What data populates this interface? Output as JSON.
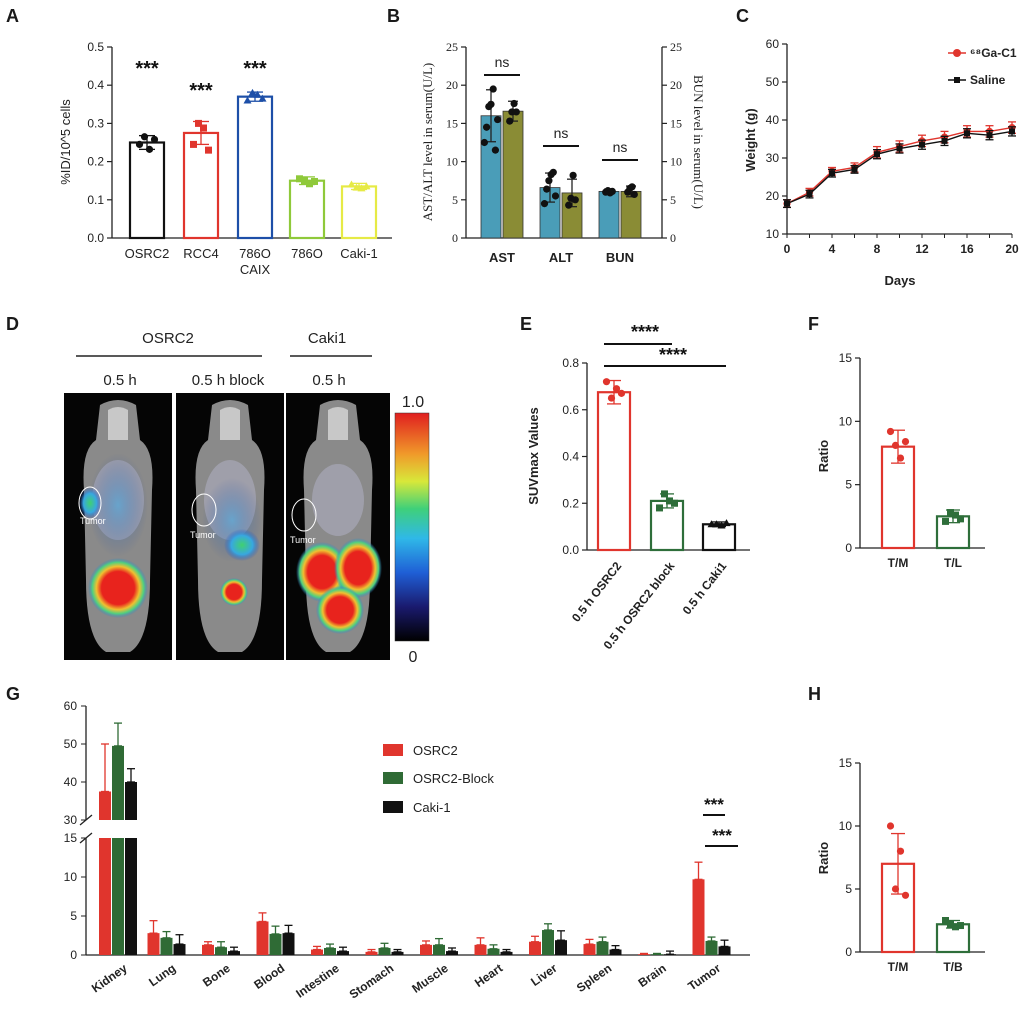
{
  "panel_letters": [
    "A",
    "B",
    "C",
    "D",
    "E",
    "F",
    "G",
    "H"
  ],
  "colors": {
    "red": "#e0352d",
    "blue": "#1d4fa8",
    "black": "#111111",
    "lime": "#8fc93a",
    "yellow": "#e6ea45",
    "teal": "#4a9db8",
    "olive": "#8a8c35",
    "green": "#2e6e3a",
    "darkgreen": "#2f6b35",
    "dark": "#1a1a1a"
  },
  "chart_data": [
    {
      "panel": "A",
      "type": "bar",
      "categories": [
        "OSRC2",
        "RCC4",
        "786O\nCAIX",
        "786O",
        "Caki-1"
      ],
      "values": [
        0.25,
        0.275,
        0.37,
        0.15,
        0.135
      ],
      "errors": [
        0.018,
        0.03,
        0.012,
        0.01,
        0.008
      ],
      "points": [
        [
          0.245,
          0.265,
          0.232,
          0.258
        ],
        [
          0.245,
          0.3,
          0.288,
          0.23
        ],
        [
          0.36,
          0.38,
          0.375,
          0.365
        ],
        [
          0.155,
          0.15,
          0.142,
          0.148
        ],
        [
          0.14,
          0.132,
          0.13,
          0.135
        ]
      ],
      "colors": [
        "#111111",
        "#e0352d",
        "#1d4fa8",
        "#8fc93a",
        "#e6ea45"
      ],
      "ylabel": "%ID/10^5 cells",
      "ylim": [
        0,
        0.5
      ],
      "yticks": [
        "0.0",
        "0.1",
        "0.2",
        "0.3",
        "0.4",
        "0.5"
      ],
      "annotations": [
        "***",
        "***",
        "***"
      ]
    },
    {
      "panel": "B",
      "type": "bar",
      "categories": [
        "AST",
        "ALT",
        "BUN"
      ],
      "series": [
        {
          "values": [
            16,
            6.6,
            6.1
          ],
          "errors": [
            3.4,
            1.9,
            0.3
          ],
          "points": [
            [
              12.5,
              14.5,
              17.2,
              17.5,
              19.5,
              11.5,
              15.5
            ],
            [
              4.5,
              6.4,
              7.5,
              8.3,
              8.6,
              5.5
            ],
            [
              6,
              6.2,
              5.9,
              6.1
            ]
          ]
        },
        {
          "values": [
            16.6,
            5.9,
            6.1
          ],
          "errors": [
            1.3,
            1.8,
            0.7
          ],
          "points": [
            [
              15.3,
              16.5,
              17.6,
              16.5
            ],
            [
              4.3,
              5.2,
              8.2,
              5
            ],
            [
              6,
              6.5,
              6.7,
              5.7
            ]
          ]
        }
      ],
      "series_colors": [
        "#4a9db8",
        "#8a8c35"
      ],
      "ylabel": "AST/ALT level in serum(U/L)",
      "ylabel_right": "BUN level in serum(U/L)",
      "ylim": [
        0,
        25
      ],
      "yticks": [
        "0",
        "5",
        "10",
        "15",
        "20",
        "25"
      ],
      "annotations": [
        "ns",
        "ns",
        "ns"
      ]
    },
    {
      "panel": "C",
      "type": "line",
      "x": [
        0,
        2,
        4,
        6,
        8,
        10,
        12,
        14,
        16,
        18,
        20
      ],
      "series": [
        {
          "name": "⁶⁸Ga-C1",
          "values": [
            18,
            21,
            26.5,
            27.5,
            31.5,
            33,
            34.5,
            35.5,
            37,
            37,
            38
          ],
          "errors": [
            1,
            1,
            1,
            1.2,
            1.5,
            1.5,
            1.5,
            1.5,
            1.5,
            1.5,
            1.5
          ],
          "color": "#e0352d"
        },
        {
          "name": "Saline",
          "values": [
            18,
            20.5,
            26,
            27,
            31,
            32.5,
            33.5,
            34.5,
            36.5,
            36,
            37
          ],
          "errors": [
            1,
            1,
            1,
            1,
            1.2,
            1.2,
            1.2,
            1.2,
            1.2,
            1.2,
            1.2
          ],
          "color": "#111111"
        }
      ],
      "xlabel": "Days",
      "ylabel": "Weight (g)",
      "xlim": [
        0,
        20
      ],
      "ylim": [
        10,
        60
      ],
      "xticks": [
        "0",
        "4",
        "8",
        "12",
        "16",
        "20"
      ],
      "yticks": [
        "10",
        "20",
        "30",
        "40",
        "50",
        "60"
      ]
    },
    {
      "panel": "E",
      "type": "bar",
      "categories": [
        "0.5 h OSRC2",
        "0.5 h OSRC2 block",
        "0.5 h Caki1"
      ],
      "values": [
        0.675,
        0.21,
        0.11
      ],
      "errors": [
        0.05,
        0.03,
        0.01
      ],
      "points": [
        [
          0.72,
          0.65,
          0.69,
          0.67
        ],
        [
          0.18,
          0.24,
          0.21,
          0.2
        ],
        [
          0.11,
          0.11,
          0.105,
          0.115
        ]
      ],
      "colors": [
        "#e0352d",
        "#2e6e3a",
        "#111111"
      ],
      "ylabel": "SUVmax Values",
      "ylim": [
        0,
        0.8
      ],
      "yticks": [
        "0.0",
        "0.2",
        "0.4",
        "0.6",
        "0.8"
      ],
      "annotations": [
        "****",
        "****"
      ]
    },
    {
      "panel": "F",
      "type": "bar",
      "categories": [
        "T/M",
        "T/L"
      ],
      "values": [
        8,
        2.5
      ],
      "errors": [
        1.3,
        0.5
      ],
      "points": [
        [
          9.2,
          8.1,
          7.1,
          8.4
        ],
        [
          2.1,
          2.8,
          2.6,
          2.3
        ]
      ],
      "colors": [
        "#e0352d",
        "#2e6e3a"
      ],
      "ylabel": "Ratio",
      "ylim": [
        0,
        15
      ],
      "yticks": [
        "0",
        "5",
        "10",
        "15"
      ]
    },
    {
      "panel": "G",
      "type": "bar",
      "categories": [
        "Kidney",
        "Lung",
        "Bone",
        "Blood",
        "Intestine",
        "Stomach",
        "Muscle",
        "Heart",
        "Liver",
        "Spleen",
        "Brain",
        "Tumor"
      ],
      "series": [
        {
          "name": "OSRC2",
          "values": [
            37.5,
            2.8,
            1.3,
            4.3,
            0.7,
            0.4,
            1.3,
            1.3,
            1.7,
            1.4,
            0.1,
            9.7
          ],
          "errors": [
            12.5,
            1.6,
            0.4,
            1.1,
            0.4,
            0.3,
            0.5,
            0.9,
            0.7,
            0.6,
            0.1,
            2.2
          ]
        },
        {
          "name": "OSRC2-Block",
          "values": [
            49.5,
            2.2,
            1,
            2.7,
            0.9,
            0.9,
            1.3,
            0.8,
            3.2,
            1.7,
            0.1,
            1.8
          ],
          "errors": [
            6,
            0.8,
            0.7,
            1,
            0.5,
            0.6,
            0.8,
            0.5,
            0.8,
            0.6,
            0.1,
            0.5
          ]
        },
        {
          "name": "Caki-1",
          "values": [
            40,
            1.4,
            0.5,
            2.8,
            0.5,
            0.4,
            0.5,
            0.4,
            1.9,
            0.7,
            0.1,
            1.1
          ],
          "errors": [
            3.5,
            1.2,
            0.5,
            1,
            0.5,
            0.3,
            0.4,
            0.3,
            1.2,
            0.5,
            0.4,
            0.8
          ]
        }
      ],
      "series_colors": [
        "#e0352d",
        "#2f6b35",
        "#111111"
      ],
      "yticks_lower": [
        "0",
        "5",
        "10",
        "15"
      ],
      "yticks_upper": [
        "30",
        "40",
        "50",
        "60"
      ],
      "ylim_lower": [
        0,
        15
      ],
      "ylim_upper": [
        30,
        60
      ],
      "annotations": [
        "***",
        "***"
      ]
    },
    {
      "panel": "H",
      "type": "bar",
      "categories": [
        "T/M",
        "T/B"
      ],
      "values": [
        7,
        2.2
      ],
      "errors": [
        2.4,
        0.3
      ],
      "points": [
        [
          10,
          5,
          8,
          4.5
        ],
        [
          2.5,
          2.2,
          2.0,
          2.1
        ]
      ],
      "colors": [
        "#e0352d",
        "#2e6e3a"
      ],
      "ylabel": "Ratio",
      "ylim": [
        0,
        15
      ],
      "yticks": [
        "0",
        "5",
        "10",
        "15"
      ]
    }
  ],
  "imaging_panel": {
    "groups": [
      "OSRC2",
      "Caki1"
    ],
    "timepoints": [
      "0.5 h",
      "0.5 h block",
      "0.5 h"
    ],
    "tumor_labels": [
      "Tumor",
      "Tumor",
      "Tumor"
    ],
    "colorbar_max": "1.0",
    "colorbar_min": "0"
  }
}
